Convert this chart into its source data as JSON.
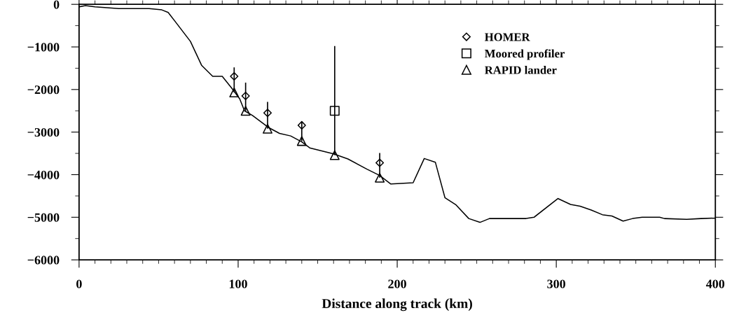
{
  "chart_data": {
    "type": "line",
    "xlabel": "Distance along track (km)",
    "xlim": [
      0,
      400
    ],
    "xticks": [
      0,
      100,
      200,
      300,
      400
    ],
    "ylim": [
      -6000,
      0
    ],
    "yticks": [
      -6000,
      -5000,
      -4000,
      -3000,
      -2000,
      -1000,
      0
    ],
    "grid": false,
    "legend": "top right",
    "tick_labels": "xy",
    "series": [
      {
        "color": "#000000",
        "marker": "none",
        "line_style": "solid",
        "x": [
          0,
          4,
          10,
          25,
          44,
          52,
          56,
          62,
          70,
          77,
          84,
          90,
          96,
          101,
          104,
          109,
          119,
          126,
          133,
          140,
          145,
          160,
          169,
          181,
          189,
          196,
          210,
          217,
          224,
          230,
          237,
          245,
          252,
          258,
          281,
          286,
          301,
          309,
          315,
          322,
          329,
          335,
          342,
          348,
          354,
          365,
          368,
          382,
          391,
          400
        ],
        "values": [
          -60,
          -30,
          -60,
          -100,
          -100,
          -130,
          -190,
          -480,
          -870,
          -1430,
          -1690,
          -1690,
          -1970,
          -2220,
          -2500,
          -2610,
          -2890,
          -3030,
          -3090,
          -3230,
          -3370,
          -3510,
          -3630,
          -3870,
          -4020,
          -4220,
          -4190,
          -3620,
          -3710,
          -4540,
          -4710,
          -5030,
          -5120,
          -5030,
          -5030,
          -5000,
          -4560,
          -4700,
          -4740,
          -4830,
          -4940,
          -4970,
          -5090,
          -5030,
          -5000,
          -5000,
          -5030,
          -5050,
          -5030,
          -5020
        ]
      },
      {
        "type": "scatter",
        "name": "HOMER",
        "color": "#000000",
        "marker": "diamond",
        "x": [
          97.5,
          104.7,
          118.5,
          140,
          189
        ],
        "values": [
          -1690,
          -2150,
          -2550,
          -2840,
          -3720
        ],
        "errors": [
          [
            -2070,
            -1480
          ],
          [
            -2500,
            -1840
          ],
          [
            -2920,
            -2290
          ],
          [
            -3210,
            -2750
          ],
          [
            -4070,
            -3490
          ]
        ]
      },
      {
        "type": "scatter",
        "name": "Moored profiler",
        "color": "#000000",
        "marker": "square",
        "x": [
          160.7
        ],
        "values": [
          -2500
        ],
        "errors": [
          [
            -3540,
            -980
          ]
        ]
      },
      {
        "type": "scatter",
        "name": "RAPID lander",
        "color": "#000000",
        "marker": "triangle",
        "x": [
          97.5,
          104.7,
          118.5,
          140,
          160.7,
          189
        ],
        "values": [
          -2070,
          -2500,
          -2920,
          -3210,
          -3540,
          -4070
        ]
      }
    ]
  }
}
